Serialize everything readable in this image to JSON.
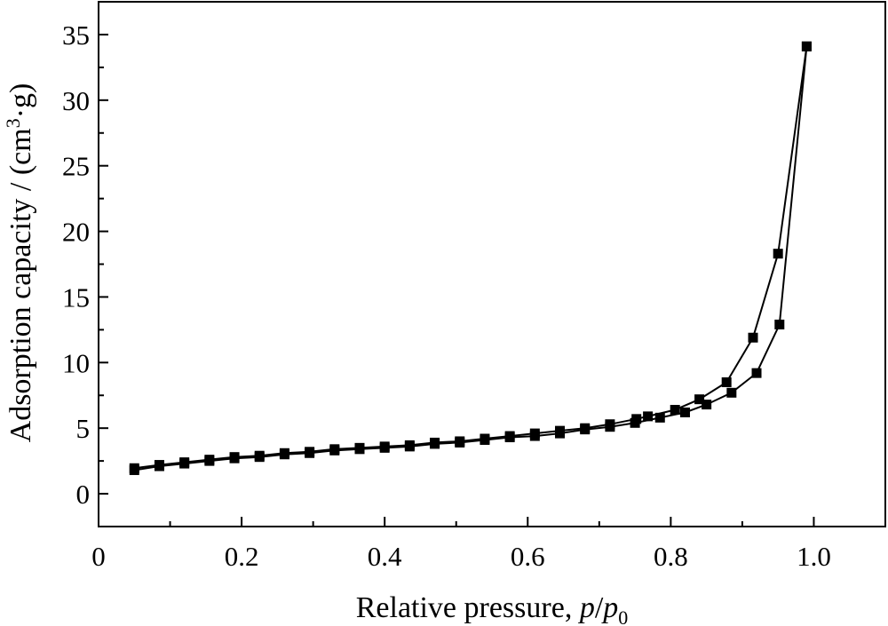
{
  "chart_data": {
    "type": "line",
    "title": "",
    "xlabel": "Relative pressure, p/p₀",
    "xlabel_parts": {
      "text": "Relative pressure, ",
      "p": "p",
      "slash": "/",
      "p0": "p",
      "sub": "0"
    },
    "ylabel": "Adsorption capacity / (cm³·g)",
    "ylabel_parts": {
      "text": "Adsorption capacity / (cm",
      "sup": "3",
      "tail": "·g)"
    },
    "xlim": [
      0,
      1.1
    ],
    "ylim": [
      -2.5,
      37.5
    ],
    "xticks": [
      0,
      0.2,
      0.4,
      0.6,
      0.8,
      1.0
    ],
    "xtick_labels": [
      "0",
      "0.2",
      "0.4",
      "0.6",
      "0.8",
      "1.0"
    ],
    "yticks": [
      0,
      5,
      10,
      15,
      20,
      25,
      30,
      35
    ],
    "ytick_labels": [
      "0",
      "5",
      "10",
      "15",
      "20",
      "25",
      "30",
      "35"
    ],
    "grid": false,
    "marker": "square",
    "color": "#000000",
    "series": [
      {
        "x": [
          0.05,
          0.085,
          0.12,
          0.155,
          0.19,
          0.225,
          0.26,
          0.295,
          0.33,
          0.365,
          0.4,
          0.435,
          0.47,
          0.505,
          0.54,
          0.575,
          0.61,
          0.645,
          0.68,
          0.715,
          0.75,
          0.785,
          0.82,
          0.85,
          0.885,
          0.92,
          0.952,
          0.99
        ],
        "y": [
          1.8,
          2.1,
          2.3,
          2.5,
          2.7,
          2.8,
          3.0,
          3.1,
          3.3,
          3.4,
          3.5,
          3.6,
          3.8,
          3.9,
          4.1,
          4.3,
          4.4,
          4.6,
          4.9,
          5.1,
          5.4,
          5.8,
          6.2,
          6.8,
          7.7,
          9.2,
          12.9,
          34.1
        ]
      },
      {
        "x": [
          0.05,
          0.085,
          0.12,
          0.155,
          0.19,
          0.225,
          0.26,
          0.295,
          0.33,
          0.365,
          0.4,
          0.435,
          0.47,
          0.505,
          0.54,
          0.575,
          0.61,
          0.645,
          0.68,
          0.715,
          0.752,
          0.768,
          0.806,
          0.84,
          0.878,
          0.915,
          0.95,
          0.99
        ],
        "y": [
          1.95,
          2.2,
          2.4,
          2.6,
          2.8,
          2.9,
          3.1,
          3.2,
          3.4,
          3.5,
          3.6,
          3.7,
          3.9,
          4.0,
          4.2,
          4.4,
          4.6,
          4.8,
          5.0,
          5.3,
          5.7,
          5.9,
          6.4,
          7.2,
          8.5,
          11.9,
          18.3,
          34.1
        ]
      }
    ]
  }
}
